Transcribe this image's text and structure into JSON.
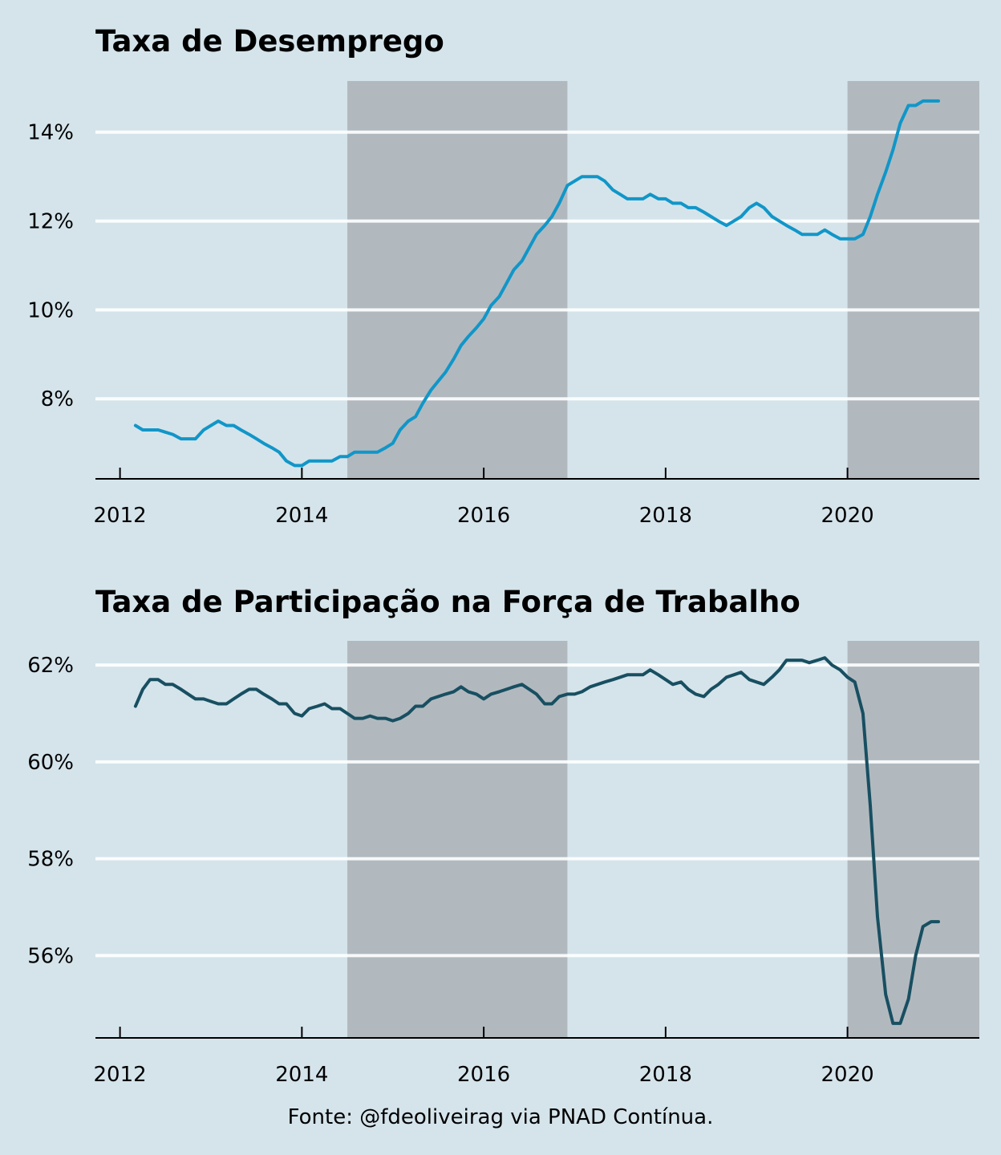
{
  "source": "Fonte: @fdeoliveirag via PNAD Contínua.",
  "colors": {
    "background": "#d5e4eb",
    "shade": "#b1b9bf",
    "grid": "#ffffff",
    "unemployment_line": "#1196c8",
    "participation_line": "#184f61"
  },
  "chart_data": [
    {
      "type": "line",
      "title": "Taxa de Desemprego",
      "xlabel": "",
      "ylabel": "",
      "xlim": [
        2011.73,
        2021.45
      ],
      "ylim": [
        6.2,
        15.15
      ],
      "x_ticks": [
        2012,
        2014,
        2016,
        2018,
        2020
      ],
      "y_ticks": [
        8,
        10,
        12,
        14
      ],
      "y_tick_labels": [
        "8%",
        "10%",
        "12%",
        "14%"
      ],
      "grid": "horizontal",
      "shaded_periods": [
        [
          2014.5,
          2016.92
        ],
        [
          2020.0,
          2021.45
        ]
      ],
      "series": [
        {
          "color": "#1196c8",
          "x": [
            2012.17,
            2012.25,
            2012.33,
            2012.42,
            2012.5,
            2012.58,
            2012.67,
            2012.75,
            2012.83,
            2012.92,
            2013.0,
            2013.08,
            2013.17,
            2013.25,
            2013.33,
            2013.42,
            2013.5,
            2013.58,
            2013.67,
            2013.75,
            2013.83,
            2013.92,
            2014.0,
            2014.08,
            2014.17,
            2014.25,
            2014.33,
            2014.42,
            2014.5,
            2014.58,
            2014.67,
            2014.75,
            2014.83,
            2014.92,
            2015.0,
            2015.08,
            2015.17,
            2015.25,
            2015.33,
            2015.42,
            2015.5,
            2015.58,
            2015.67,
            2015.75,
            2015.83,
            2015.92,
            2016.0,
            2016.08,
            2016.17,
            2016.25,
            2016.33,
            2016.42,
            2016.5,
            2016.58,
            2016.67,
            2016.75,
            2016.83,
            2016.92,
            2017.0,
            2017.08,
            2017.17,
            2017.25,
            2017.33,
            2017.42,
            2017.5,
            2017.58,
            2017.67,
            2017.75,
            2017.83,
            2017.92,
            2018.0,
            2018.08,
            2018.17,
            2018.25,
            2018.33,
            2018.42,
            2018.5,
            2018.58,
            2018.67,
            2018.75,
            2018.83,
            2018.92,
            2019.0,
            2019.08,
            2019.17,
            2019.25,
            2019.33,
            2019.42,
            2019.5,
            2019.58,
            2019.67,
            2019.75,
            2019.83,
            2019.92,
            2020.0,
            2020.08,
            2020.17,
            2020.25,
            2020.33,
            2020.42,
            2020.5,
            2020.58,
            2020.67,
            2020.75,
            2020.83,
            2020.92,
            2021.0
          ],
          "values": [
            7.4,
            7.3,
            7.3,
            7.3,
            7.25,
            7.2,
            7.1,
            7.1,
            7.1,
            7.3,
            7.4,
            7.5,
            7.4,
            7.4,
            7.3,
            7.2,
            7.1,
            7.0,
            6.9,
            6.8,
            6.6,
            6.5,
            6.5,
            6.6,
            6.6,
            6.6,
            6.6,
            6.7,
            6.7,
            6.8,
            6.8,
            6.8,
            6.8,
            6.9,
            7.0,
            7.3,
            7.5,
            7.6,
            7.9,
            8.2,
            8.4,
            8.6,
            8.9,
            9.2,
            9.4,
            9.6,
            9.8,
            10.1,
            10.3,
            10.6,
            10.9,
            11.1,
            11.4,
            11.7,
            11.9,
            12.1,
            12.4,
            12.8,
            12.9,
            13.0,
            13.0,
            13.0,
            12.9,
            12.7,
            12.6,
            12.5,
            12.5,
            12.5,
            12.6,
            12.5,
            12.5,
            12.4,
            12.4,
            12.3,
            12.3,
            12.2,
            12.1,
            12.0,
            11.9,
            12.0,
            12.1,
            12.3,
            12.4,
            12.3,
            12.1,
            12.0,
            11.9,
            11.8,
            11.7,
            11.7,
            11.7,
            11.8,
            11.7,
            11.6,
            11.6,
            11.6,
            11.7,
            12.1,
            12.6,
            13.1,
            13.6,
            14.2,
            14.6,
            14.6,
            14.7,
            14.7,
            14.7
          ]
        }
      ]
    },
    {
      "type": "line",
      "title": "Taxa de Participação na Força de Trabalho",
      "xlabel": "",
      "ylabel": "",
      "xlim": [
        2011.73,
        2021.45
      ],
      "ylim": [
        54.3,
        62.5
      ],
      "x_ticks": [
        2012,
        2014,
        2016,
        2018,
        2020
      ],
      "y_ticks": [
        56,
        58,
        60,
        62
      ],
      "y_tick_labels": [
        "56%",
        "58%",
        "60%",
        "62%"
      ],
      "grid": "horizontal",
      "shaded_periods": [
        [
          2014.5,
          2016.92
        ],
        [
          2020.0,
          2021.45
        ]
      ],
      "series": [
        {
          "color": "#184f61",
          "x": [
            2012.17,
            2012.25,
            2012.33,
            2012.42,
            2012.5,
            2012.58,
            2012.67,
            2012.75,
            2012.83,
            2012.92,
            2013.0,
            2013.08,
            2013.17,
            2013.25,
            2013.33,
            2013.42,
            2013.5,
            2013.58,
            2013.67,
            2013.75,
            2013.83,
            2013.92,
            2014.0,
            2014.08,
            2014.17,
            2014.25,
            2014.33,
            2014.42,
            2014.5,
            2014.58,
            2014.67,
            2014.75,
            2014.83,
            2014.92,
            2015.0,
            2015.08,
            2015.17,
            2015.25,
            2015.33,
            2015.42,
            2015.5,
            2015.58,
            2015.67,
            2015.75,
            2015.83,
            2015.92,
            2016.0,
            2016.08,
            2016.17,
            2016.25,
            2016.33,
            2016.42,
            2016.5,
            2016.58,
            2016.67,
            2016.75,
            2016.83,
            2016.92,
            2017.0,
            2017.08,
            2017.17,
            2017.25,
            2017.33,
            2017.42,
            2017.5,
            2017.58,
            2017.67,
            2017.75,
            2017.83,
            2017.92,
            2018.0,
            2018.08,
            2018.17,
            2018.25,
            2018.33,
            2018.42,
            2018.5,
            2018.58,
            2018.67,
            2018.75,
            2018.83,
            2018.92,
            2019.0,
            2019.08,
            2019.17,
            2019.25,
            2019.33,
            2019.42,
            2019.5,
            2019.58,
            2019.67,
            2019.75,
            2019.83,
            2019.92,
            2020.0,
            2020.08,
            2020.17,
            2020.25,
            2020.33,
            2020.42,
            2020.5,
            2020.58,
            2020.67,
            2020.75,
            2020.83,
            2020.92,
            2021.0
          ],
          "values": [
            61.15,
            61.5,
            61.7,
            61.7,
            61.6,
            61.6,
            61.5,
            61.4,
            61.3,
            61.3,
            61.25,
            61.2,
            61.2,
            61.3,
            61.4,
            61.5,
            61.5,
            61.4,
            61.3,
            61.2,
            61.2,
            61.0,
            60.95,
            61.1,
            61.15,
            61.2,
            61.1,
            61.1,
            61.0,
            60.9,
            60.9,
            60.95,
            60.9,
            60.9,
            60.85,
            60.9,
            61.0,
            61.15,
            61.15,
            61.3,
            61.35,
            61.4,
            61.45,
            61.55,
            61.45,
            61.4,
            61.3,
            61.4,
            61.45,
            61.5,
            61.55,
            61.6,
            61.5,
            61.4,
            61.2,
            61.2,
            61.35,
            61.4,
            61.4,
            61.45,
            61.55,
            61.6,
            61.65,
            61.7,
            61.75,
            61.8,
            61.8,
            61.8,
            61.9,
            61.8,
            61.7,
            61.6,
            61.65,
            61.5,
            61.4,
            61.35,
            61.5,
            61.6,
            61.75,
            61.8,
            61.85,
            61.7,
            61.65,
            61.6,
            61.75,
            61.9,
            62.1,
            62.1,
            62.1,
            62.05,
            62.1,
            62.15,
            62.0,
            61.9,
            61.75,
            61.65,
            61.0,
            59.1,
            56.8,
            55.2,
            54.6,
            54.6,
            55.1,
            56.0,
            56.6,
            56.7,
            56.7
          ]
        }
      ]
    }
  ]
}
